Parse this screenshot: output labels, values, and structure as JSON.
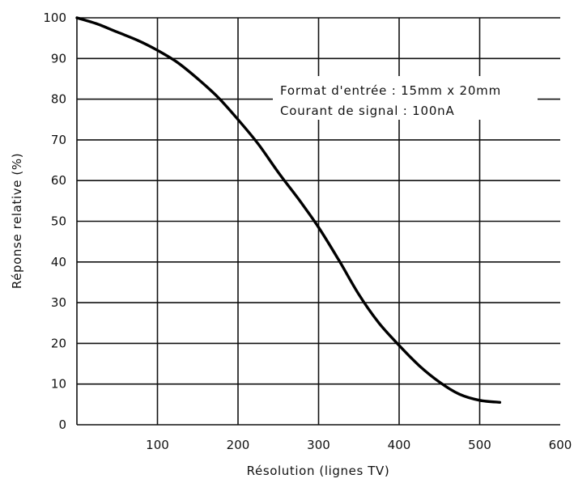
{
  "chart_data": {
    "type": "line",
    "title": "",
    "xlabel": "Résolution (lignes TV)",
    "ylabel": "Réponse relative (%)",
    "xlim": [
      0,
      600
    ],
    "ylim": [
      0,
      100
    ],
    "xticks": [
      100,
      200,
      300,
      400,
      500,
      600
    ],
    "yticks": [
      0,
      10,
      20,
      30,
      40,
      50,
      60,
      70,
      80,
      90,
      100
    ],
    "grid": true,
    "color": "#000000",
    "annotations": [
      "Format d'entrée : 15mm x 20mm",
      "Courant de signal : 100nA"
    ],
    "series": [
      {
        "x": [
          0,
          25,
          50,
          75,
          100,
          125,
          150,
          175,
          200,
          225,
          250,
          275,
          300,
          325,
          350,
          375,
          400,
          425,
          450,
          475,
          500,
          525
        ],
        "y": [
          100,
          98.5,
          96.5,
          94.5,
          92,
          89,
          85,
          80.5,
          75,
          69,
          62,
          55.5,
          48.5,
          40.5,
          32,
          25,
          19.5,
          14.5,
          10.5,
          7.5,
          6,
          5.5
        ]
      }
    ]
  }
}
